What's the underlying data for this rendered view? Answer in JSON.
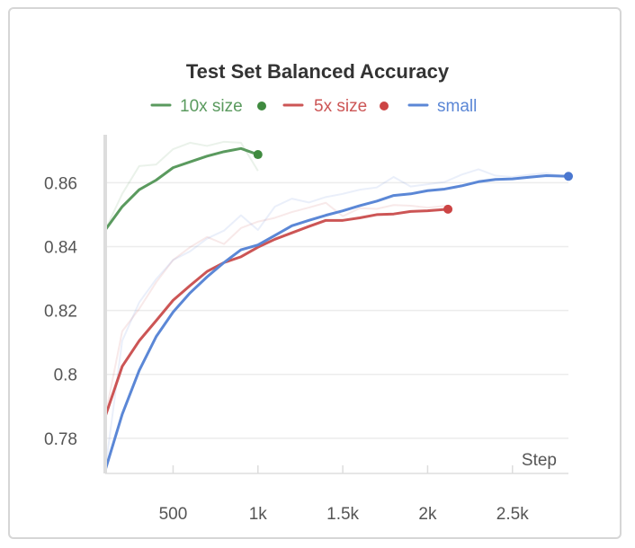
{
  "chart_data": {
    "type": "line",
    "title": "Test Set Balanced Accuracy",
    "xlabel": "Step",
    "ylabel": "",
    "xlim": [
      100,
      2830
    ],
    "ylim": [
      0.769,
      0.875
    ],
    "x_ticks": [
      {
        "value": 500,
        "label": "500"
      },
      {
        "value": 1000,
        "label": "1k"
      },
      {
        "value": 1500,
        "label": "1.5k"
      },
      {
        "value": 2000,
        "label": "2k"
      },
      {
        "value": 2500,
        "label": "2.5k"
      }
    ],
    "y_ticks": [
      {
        "value": 0.78,
        "label": "0.78"
      },
      {
        "value": 0.8,
        "label": "0.8"
      },
      {
        "value": 0.82,
        "label": "0.82"
      },
      {
        "value": 0.84,
        "label": "0.84"
      },
      {
        "value": 0.86,
        "label": "0.86"
      }
    ],
    "grid": true,
    "legend_position": "top",
    "series": [
      {
        "name": "10x size",
        "color": "#5a9a5e",
        "end_marker_color": "#3f8a3f",
        "x": [
          100,
          200,
          300,
          400,
          500,
          600,
          700,
          800,
          900,
          1000
        ],
        "y": [
          0.8452,
          0.8525,
          0.8578,
          0.8608,
          0.8647,
          0.8665,
          0.8683,
          0.8697,
          0.8707,
          0.8688
        ],
        "raw_x": [
          100,
          200,
          300,
          400,
          500,
          600,
          700,
          800,
          900,
          1000
        ],
        "raw_y": [
          0.8452,
          0.8565,
          0.8652,
          0.8657,
          0.8705,
          0.8725,
          0.8715,
          0.8728,
          0.8725,
          0.8637
        ]
      },
      {
        "name": "5x size",
        "color": "#cc5555",
        "end_marker_color": "#cc4444",
        "x": [
          100,
          200,
          300,
          400,
          500,
          600,
          700,
          800,
          900,
          1000,
          1100,
          1200,
          1300,
          1400,
          1500,
          1600,
          1700,
          1800,
          1900,
          2000,
          2120
        ],
        "y": [
          0.7868,
          0.8025,
          0.8105,
          0.8168,
          0.8232,
          0.8278,
          0.8322,
          0.835,
          0.8368,
          0.8398,
          0.8423,
          0.8443,
          0.8463,
          0.8482,
          0.8482,
          0.849,
          0.85,
          0.8502,
          0.851,
          0.8512,
          0.8517
        ],
        "raw_x": [
          100,
          200,
          300,
          400,
          500,
          600,
          700,
          800,
          900,
          1000,
          1100,
          1200,
          1300,
          1400,
          1500,
          1600,
          1700,
          1800,
          1900,
          2000,
          2120
        ],
        "raw_y": [
          0.7868,
          0.8135,
          0.8205,
          0.8288,
          0.8358,
          0.8398,
          0.843,
          0.8408,
          0.8458,
          0.8478,
          0.849,
          0.8508,
          0.8522,
          0.8537,
          0.8495,
          0.852,
          0.8518,
          0.853,
          0.8528,
          0.8522,
          0.8528
        ]
      },
      {
        "name": "small",
        "color": "#5b87d6",
        "end_marker_color": "#4a77d0",
        "x": [
          100,
          200,
          300,
          400,
          500,
          600,
          700,
          800,
          900,
          1000,
          1100,
          1200,
          1300,
          1400,
          1500,
          1600,
          1700,
          1800,
          1900,
          2000,
          2100,
          2200,
          2300,
          2400,
          2500,
          2600,
          2700,
          2830
        ],
        "y": [
          0.77,
          0.7875,
          0.8012,
          0.8118,
          0.8195,
          0.8255,
          0.8305,
          0.835,
          0.839,
          0.8405,
          0.8435,
          0.8465,
          0.8482,
          0.8498,
          0.8512,
          0.8528,
          0.8542,
          0.856,
          0.8565,
          0.8575,
          0.858,
          0.859,
          0.8603,
          0.861,
          0.8612,
          0.8617,
          0.8622,
          0.862
        ],
        "raw_x": [
          100,
          200,
          300,
          400,
          500,
          600,
          700,
          800,
          900,
          1000,
          1100,
          1200,
          1300,
          1400,
          1500,
          1600,
          1700,
          1800,
          1900,
          2000,
          2100,
          2200,
          2300,
          2400,
          2500,
          2600,
          2700,
          2830
        ],
        "raw_y": [
          0.77,
          0.8105,
          0.8225,
          0.8298,
          0.8358,
          0.8385,
          0.8425,
          0.845,
          0.8498,
          0.8452,
          0.8525,
          0.855,
          0.8538,
          0.8555,
          0.8565,
          0.8578,
          0.8585,
          0.8618,
          0.8588,
          0.8595,
          0.8602,
          0.8625,
          0.8642,
          0.8622,
          0.8618,
          0.8625,
          0.863,
          0.8618
        ]
      }
    ]
  }
}
